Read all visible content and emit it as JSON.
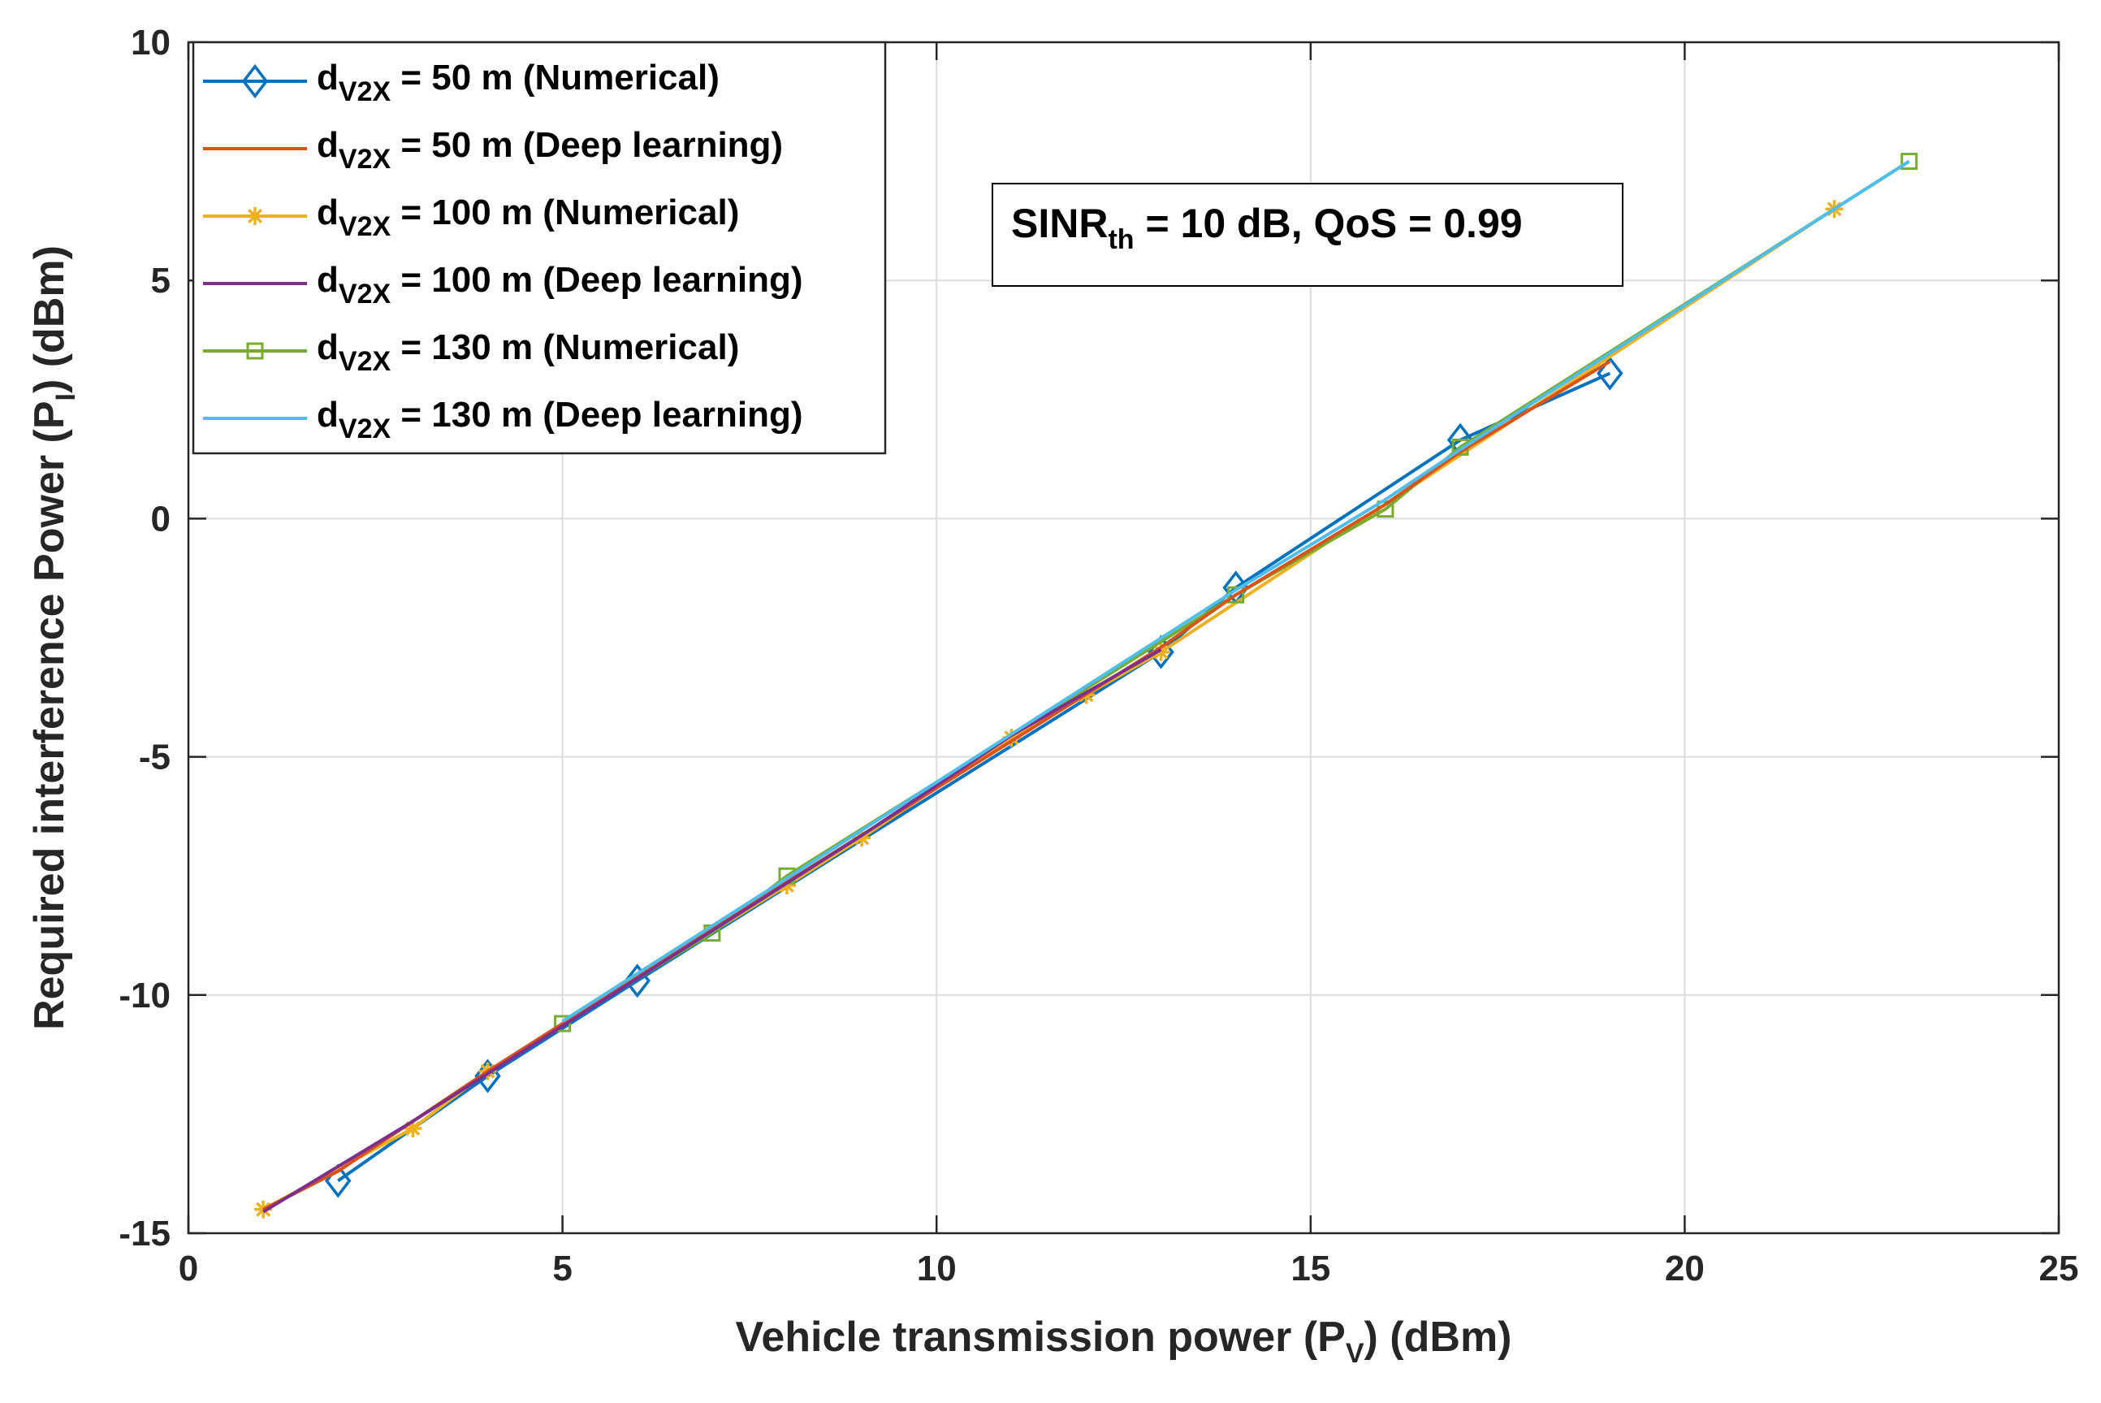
{
  "chart_data": {
    "type": "line",
    "xlabel": {
      "main": "Vehicle transmission power (P",
      "sub": "V",
      "tail": ") (dBm)"
    },
    "ylabel": {
      "main": "Required interference Power (P",
      "sub": "I",
      "tail": ") (dBm)"
    },
    "xlim": [
      0,
      25
    ],
    "ylim": [
      -15,
      10
    ],
    "xticks": [
      0,
      5,
      10,
      15,
      20,
      25
    ],
    "yticks": [
      -15,
      -10,
      -5,
      0,
      5,
      10
    ],
    "xtick_labels": [
      "0",
      "5",
      "10",
      "15",
      "20",
      "25"
    ],
    "ytick_labels": [
      "-15",
      "-10",
      "-5",
      "0",
      "5",
      "10"
    ],
    "grid": true,
    "legend_position": "top-left",
    "annotation": {
      "main": "SINR",
      "sub": "th",
      "tail": " = 10 dB, QoS = 0.99"
    },
    "series": [
      {
        "name": "d_V2X = 50 m (Numerical)",
        "label": {
          "main": "d",
          "sub": "V2X",
          "tail": " = 50 m  (Numerical)"
        },
        "color": "#0072BD",
        "marker": "diamond",
        "x": [
          2,
          4,
          6,
          13,
          14,
          17,
          19
        ],
        "y": [
          -13.9,
          -11.7,
          -9.7,
          -2.8,
          -1.45,
          1.65,
          3.05
        ]
      },
      {
        "name": "d_V2X = 50 m (Deep learning)",
        "label": {
          "main": "d",
          "sub": "V2X",
          "tail": " = 50 m (Deep learning)"
        },
        "color": "#D95319",
        "marker": "none",
        "x": [
          1,
          2,
          4,
          6,
          13,
          14,
          16,
          17,
          19
        ],
        "y": [
          -14.5,
          -13.7,
          -11.6,
          -9.6,
          -2.7,
          -1.6,
          0.3,
          1.4,
          3.3
        ]
      },
      {
        "name": "d_V2X = 100 m (Numerical)",
        "label": {
          "main": "d",
          "sub": "V2X",
          "tail": " = 100 m  (Numerical)"
        },
        "color": "#EDB120",
        "marker": "asterisk",
        "x": [
          1,
          3,
          4,
          8,
          9,
          11,
          12,
          13,
          22
        ],
        "y": [
          -14.5,
          -12.8,
          -11.6,
          -7.7,
          -6.7,
          -4.6,
          -3.7,
          -2.8,
          6.5
        ]
      },
      {
        "name": "d_V2X = 100 m (Deep learning)",
        "label": {
          "main": "d",
          "sub": "V2X",
          "tail": " = 100 m (Deep learning)"
        },
        "color": "#7E2F8E",
        "marker": "none",
        "x": [
          1,
          3,
          4,
          8,
          9,
          11,
          12,
          13
        ],
        "y": [
          -14.55,
          -12.65,
          -11.65,
          -7.65,
          -6.65,
          -4.55,
          -3.65,
          -2.75
        ]
      },
      {
        "name": "d_V2X = 130 m (Numerical)",
        "label": {
          "main": "d",
          "sub": "V2X",
          "tail": " = 130 m  (Numerical)"
        },
        "color": "#77AC30",
        "marker": "square",
        "x": [
          5,
          7,
          8,
          14,
          16,
          17,
          23
        ],
        "y": [
          -10.6,
          -8.7,
          -7.5,
          -1.6,
          0.2,
          1.5,
          7.5
        ]
      },
      {
        "name": "d_V2X = 130 m (Deep learning)",
        "label": {
          "main": "d",
          "sub": "V2X",
          "tail": " = 130 m (Deep learning)"
        },
        "color": "#4DBEEE",
        "marker": "none",
        "x": [
          5,
          7,
          8,
          14,
          16,
          17,
          22,
          23
        ],
        "y": [
          -10.55,
          -8.55,
          -7.55,
          -1.5,
          0.4,
          1.45,
          6.5,
          7.5
        ]
      }
    ]
  }
}
